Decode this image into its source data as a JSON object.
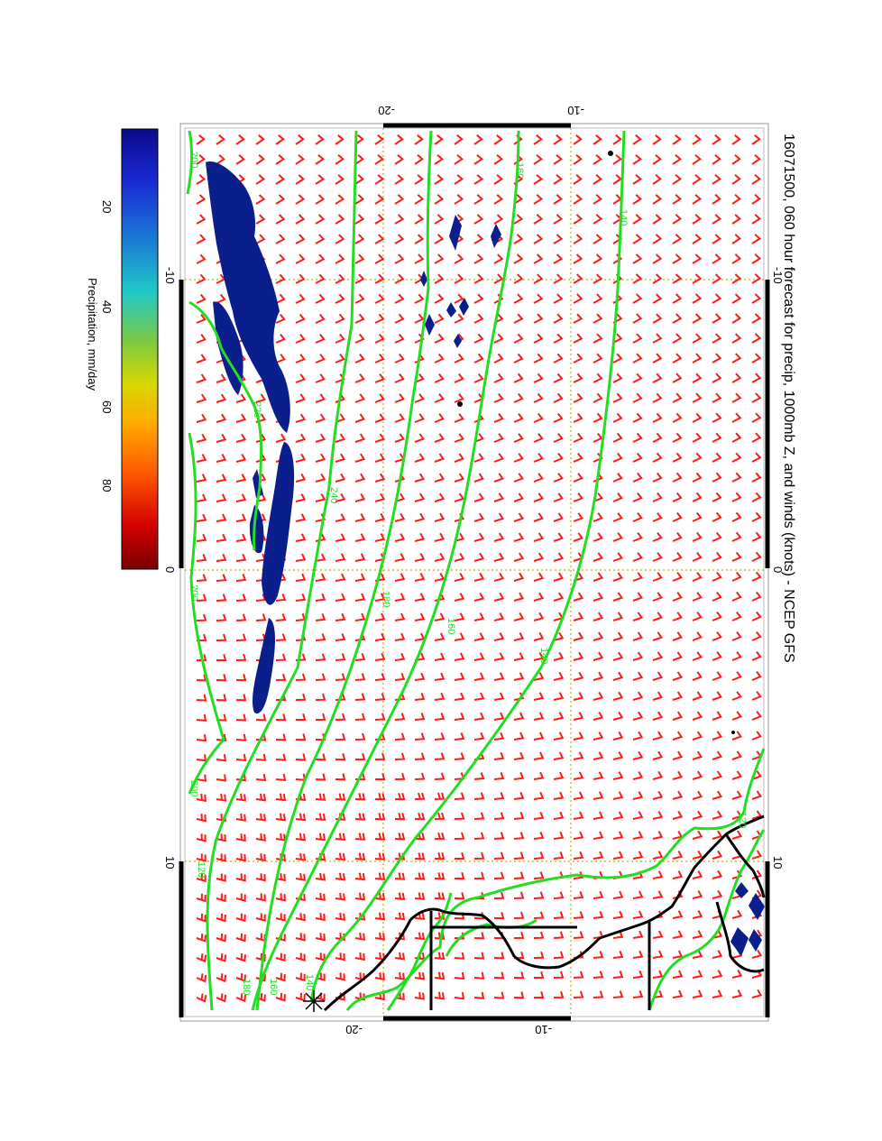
{
  "title": "16071500, 060 hour forecast for precip, 1000mb Z, and winds (knots) - NCEP GFS",
  "colorbar": {
    "label": "Precipitation, mm/day",
    "ticks": [
      "20",
      "40",
      "60",
      "80"
    ],
    "colors": [
      "#7a0000",
      "#d40000",
      "#ff5a00",
      "#ffaa00",
      "#d8d800",
      "#7ac943",
      "#20c8c8",
      "#1a7ad4",
      "#1a2ad4",
      "#0a0a8a"
    ]
  },
  "axes": {
    "longitude_ticks_left": [
      "-10",
      "0",
      "10"
    ],
    "longitude_ticks_right": [
      "-10",
      "0",
      "10"
    ],
    "latitude_ticks_top": [
      "-20",
      "-10"
    ],
    "latitude_ticks_bottom": [
      "-20",
      "-10"
    ]
  },
  "contour_labels": [
    "200",
    "160",
    "140",
    "220",
    "240",
    "200",
    "180",
    "160",
    "140",
    "120",
    "200",
    "180",
    "160",
    "140",
    "120"
  ],
  "colors": {
    "contour": "#22dd22",
    "barb": "#ff1a1a",
    "coast": "#000000",
    "grid": "#d4a800",
    "precip": "#0a1e8c"
  }
}
